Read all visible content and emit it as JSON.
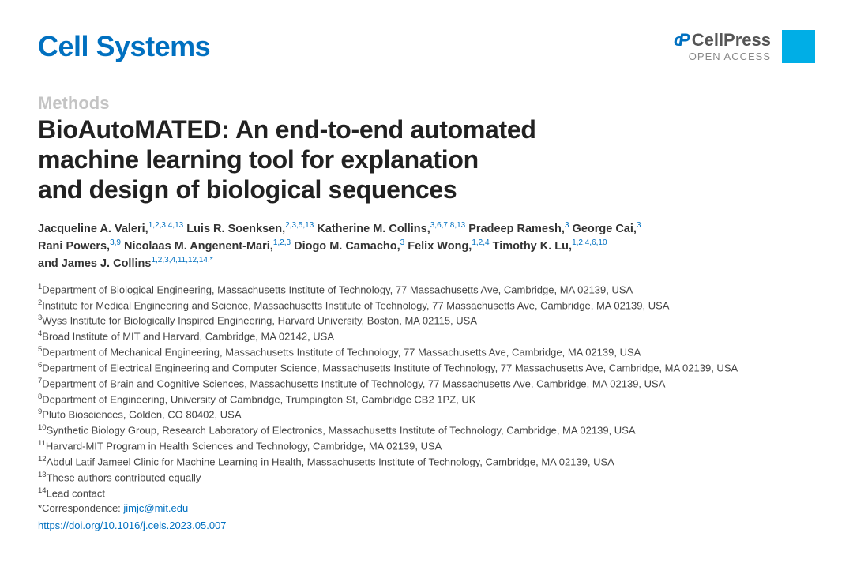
{
  "header": {
    "journal": "Cell Systems",
    "publisher": "CellPress",
    "access": "OPEN ACCESS"
  },
  "article": {
    "section": "Methods",
    "title_line1": "BioAutoMATED: An end-to-end automated",
    "title_line2": "machine learning tool for explanation",
    "title_line3": "and design of biological sequences"
  },
  "authors": [
    {
      "name": "Jacqueline A. Valeri,",
      "aff": "1,2,3,4,13"
    },
    {
      "name": "Luis R. Soenksen,",
      "aff": "2,3,5,13"
    },
    {
      "name": "Katherine M. Collins,",
      "aff": "3,6,7,8,13"
    },
    {
      "name": "Pradeep Ramesh,",
      "aff": "3"
    },
    {
      "name": "George Cai,",
      "aff": "3"
    },
    {
      "name": "Rani Powers,",
      "aff": "3,9"
    },
    {
      "name": "Nicolaas M. Angenent-Mari,",
      "aff": "1,2,3"
    },
    {
      "name": "Diogo M. Camacho,",
      "aff": "3"
    },
    {
      "name": "Felix Wong,",
      "aff": "1,2,4"
    },
    {
      "name": "Timothy K. Lu,",
      "aff": "1,2,4,6,10"
    },
    {
      "name": "and James J. Collins",
      "aff": "1,2,3,4,11,12,14,*"
    }
  ],
  "affiliations": [
    "Department of Biological Engineering, Massachusetts Institute of Technology, 77 Massachusetts Ave, Cambridge, MA 02139, USA",
    "Institute for Medical Engineering and Science, Massachusetts Institute of Technology, 77 Massachusetts Ave, Cambridge, MA 02139, USA",
    "Wyss Institute for Biologically Inspired Engineering, Harvard University, Boston, MA 02115, USA",
    "Broad Institute of MIT and Harvard, Cambridge, MA 02142, USA",
    "Department of Mechanical Engineering, Massachusetts Institute of Technology, 77 Massachusetts Ave, Cambridge, MA 02139, USA",
    "Department of Electrical Engineering and Computer Science, Massachusetts Institute of Technology, 77 Massachusetts Ave, Cambridge, MA 02139, USA",
    "Department of Brain and Cognitive Sciences, Massachusetts Institute of Technology, 77 Massachusetts Ave, Cambridge, MA 02139, USA",
    "Department of Engineering, University of Cambridge, Trumpington St, Cambridge CB2 1PZ, UK",
    "Pluto Biosciences, Golden, CO 80402, USA",
    "Synthetic Biology Group, Research Laboratory of Electronics, Massachusetts Institute of Technology, Cambridge, MA 02139, USA",
    "Harvard-MIT Program in Health Sciences and Technology, Cambridge, MA 02139, USA",
    "Abdul Latif Jameel Clinic for Machine Learning in Health, Massachusetts Institute of Technology, Cambridge, MA 02139, USA",
    "These authors contributed equally",
    "Lead contact"
  ],
  "correspondence_label": "*Correspondence: ",
  "correspondence_email": "jimjc@mit.edu",
  "doi": "https://doi.org/10.1016/j.cels.2023.05.007",
  "colors": {
    "brand_blue": "#0070c0",
    "cyan_box": "#00aee6",
    "section_grey": "#c4c4c4"
  }
}
